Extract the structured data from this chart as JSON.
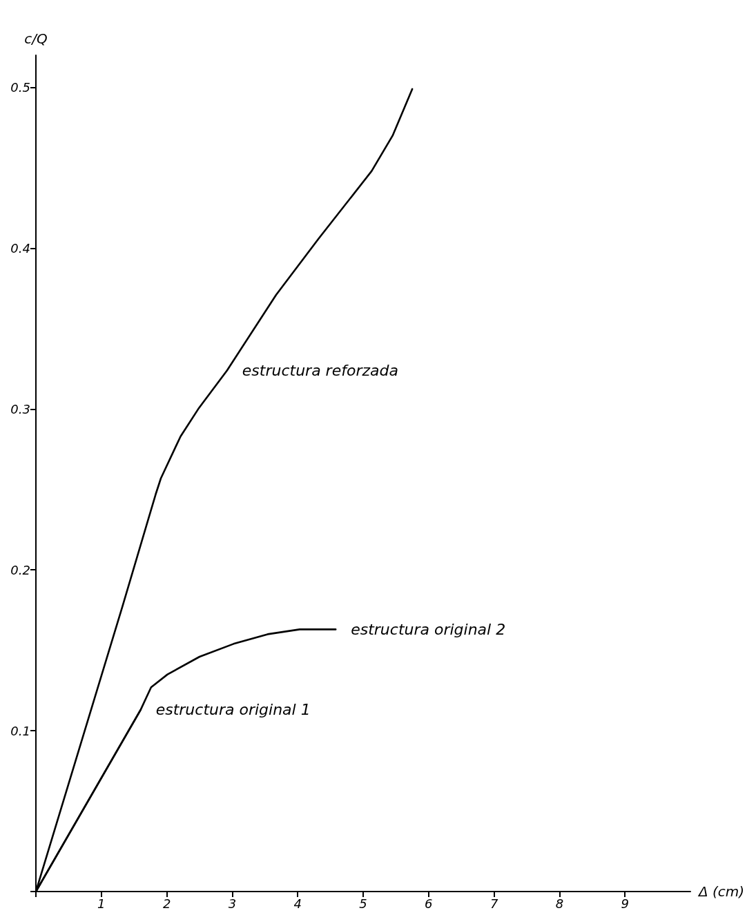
{
  "chart_data": {
    "type": "line",
    "xlabel": "Δ (cm)",
    "ylabel": "c/Q",
    "xlim": [
      0,
      10
    ],
    "xticks": [
      {
        "value": 0,
        "label": null
      },
      1,
      2,
      3,
      4,
      5,
      6,
      7,
      8,
      9
    ],
    "ylim": [
      0,
      0.52
    ],
    "yticks": [
      {
        "value": 0,
        "label": null
      },
      0.1,
      0.2,
      0.3,
      0.4,
      0.5
    ],
    "grid": false,
    "marker": "none",
    "line_style": "solid",
    "series": [
      {
        "color": "#000000",
        "x": [
          0,
          1.32,
          1.83,
          1.91,
          2.21,
          2.48,
          2.92,
          3.67,
          4.32,
          5.13,
          5.45,
          5.75
        ],
        "values": [
          0,
          0.177,
          0.247,
          0.257,
          0.283,
          0.3,
          0.324,
          0.371,
          0.406,
          0.448,
          0.47,
          0.499
        ]
      },
      {
        "color": "#000000",
        "x": [
          0,
          1.6,
          1.76,
          2.01,
          2.5,
          3.02,
          3.54,
          4.03,
          4.58
        ],
        "values": [
          0,
          0.113,
          0.127,
          0.135,
          0.146,
          0.154,
          0.16,
          0.163,
          0.163
        ]
      },
      {
        "color": "#000000",
        "x": [
          0,
          1.6
        ],
        "values": [
          0,
          0.113
        ]
      }
    ],
    "annotations": [
      {
        "text": "estructura reforzada",
        "x": 2.92,
        "y": 0.324
      },
      {
        "text": "estructura original 2",
        "x": 4.58,
        "y": 0.163
      },
      {
        "text": "estructura original 1",
        "x": 1.6,
        "y": 0.113
      }
    ]
  }
}
